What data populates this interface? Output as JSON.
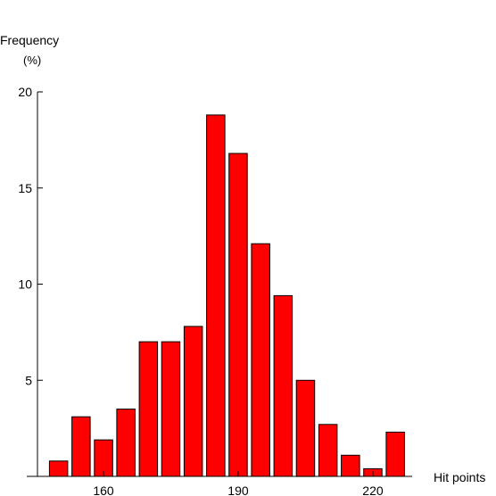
{
  "chart_data": {
    "type": "bar",
    "ylabel": "Frequency",
    "ylabel_unit": "(%)",
    "xlabel": "Hit points",
    "x": [
      150,
      155,
      160,
      165,
      170,
      175,
      180,
      185,
      190,
      195,
      200,
      205,
      210,
      215,
      220,
      225
    ],
    "values": [
      0.8,
      3.1,
      1.9,
      3.5,
      7.0,
      7.0,
      7.8,
      18.8,
      16.8,
      12.1,
      9.4,
      5.0,
      2.7,
      1.1,
      0.4,
      2.3
    ],
    "xticks": [
      160,
      190,
      220
    ],
    "yticks": [
      5,
      10,
      15,
      20
    ],
    "ylim": [
      0,
      20
    ],
    "bar_color": "#ff0000",
    "grid": false,
    "legend": "none"
  }
}
